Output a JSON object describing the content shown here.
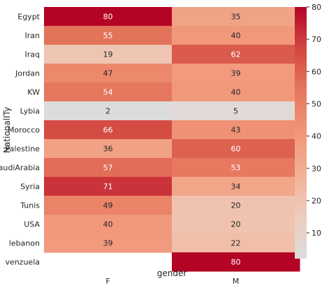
{
  "chart_data": {
    "type": "heatmap",
    "xlabel": "gender",
    "ylabel": "NationalITy",
    "x_categories": [
      "F",
      "M"
    ],
    "y_categories": [
      "Egypt",
      "Iran",
      "Iraq",
      "Jordan",
      "KW",
      "Lybia",
      "Morocco",
      "Palestine",
      "SaudiArabia",
      "Syria",
      "Tunis",
      "USA",
      "lebanon",
      "venzuela"
    ],
    "values": [
      [
        80,
        35
      ],
      [
        55,
        40
      ],
      [
        19,
        62
      ],
      [
        47,
        39
      ],
      [
        54,
        40
      ],
      [
        2,
        5
      ],
      [
        66,
        43
      ],
      [
        36,
        60
      ],
      [
        57,
        53
      ],
      [
        71,
        34
      ],
      [
        49,
        20
      ],
      [
        40,
        20
      ],
      [
        39,
        22
      ],
      [
        null,
        80
      ]
    ],
    "colormap": "coolwarm (centered)",
    "colorbar": {
      "range": [
        2,
        80
      ],
      "ticks": [
        10,
        20,
        30,
        40,
        50,
        60,
        70,
        80
      ],
      "colors": {
        "low": "#dcdcdc",
        "high": "#b40426"
      }
    },
    "annotated": true,
    "grid": false
  }
}
